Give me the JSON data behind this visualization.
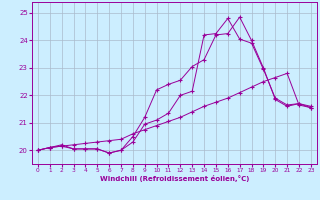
{
  "xlabel": "Windchill (Refroidissement éolien,°C)",
  "bg_color": "#cceeff",
  "line_color": "#990099",
  "grid_color": "#aabbcc",
  "xlim": [
    -0.5,
    23.5
  ],
  "ylim": [
    19.5,
    25.4
  ],
  "yticks": [
    20,
    21,
    22,
    23,
    24,
    25
  ],
  "xticks": [
    0,
    1,
    2,
    3,
    4,
    5,
    6,
    7,
    8,
    9,
    10,
    11,
    12,
    13,
    14,
    15,
    16,
    17,
    18,
    19,
    20,
    21,
    22,
    23
  ],
  "line1_x": [
    0,
    1,
    2,
    3,
    4,
    5,
    6,
    7,
    8,
    9,
    10,
    11,
    12,
    13,
    14,
    15,
    16,
    17,
    18,
    19,
    20,
    21,
    22,
    23
  ],
  "line1_y": [
    20.0,
    20.1,
    20.15,
    20.2,
    20.25,
    20.3,
    20.35,
    20.4,
    20.6,
    20.75,
    20.9,
    21.05,
    21.2,
    21.4,
    21.6,
    21.75,
    21.9,
    22.1,
    22.3,
    22.5,
    22.65,
    22.8,
    21.65,
    21.55
  ],
  "line2_x": [
    0,
    1,
    2,
    3,
    4,
    5,
    6,
    7,
    8,
    9,
    10,
    11,
    12,
    13,
    14,
    15,
    16,
    17,
    18,
    19,
    20,
    21,
    22,
    23
  ],
  "line2_y": [
    20.0,
    20.1,
    20.2,
    20.05,
    20.05,
    20.05,
    19.9,
    20.0,
    20.5,
    21.2,
    22.2,
    22.4,
    22.55,
    23.05,
    23.3,
    24.2,
    24.25,
    24.85,
    24.0,
    23.0,
    21.85,
    21.6,
    21.7,
    21.55
  ],
  "line3_x": [
    0,
    1,
    2,
    3,
    4,
    5,
    6,
    7,
    8,
    9,
    10,
    11,
    12,
    13,
    14,
    15,
    16,
    17,
    18,
    19,
    20,
    21,
    22,
    23
  ],
  "line3_y": [
    20.0,
    20.1,
    20.15,
    20.05,
    20.05,
    20.05,
    19.9,
    20.0,
    20.3,
    20.95,
    21.1,
    21.35,
    22.0,
    22.15,
    24.2,
    24.25,
    24.8,
    24.05,
    23.9,
    22.95,
    21.9,
    21.65,
    21.7,
    21.6
  ]
}
